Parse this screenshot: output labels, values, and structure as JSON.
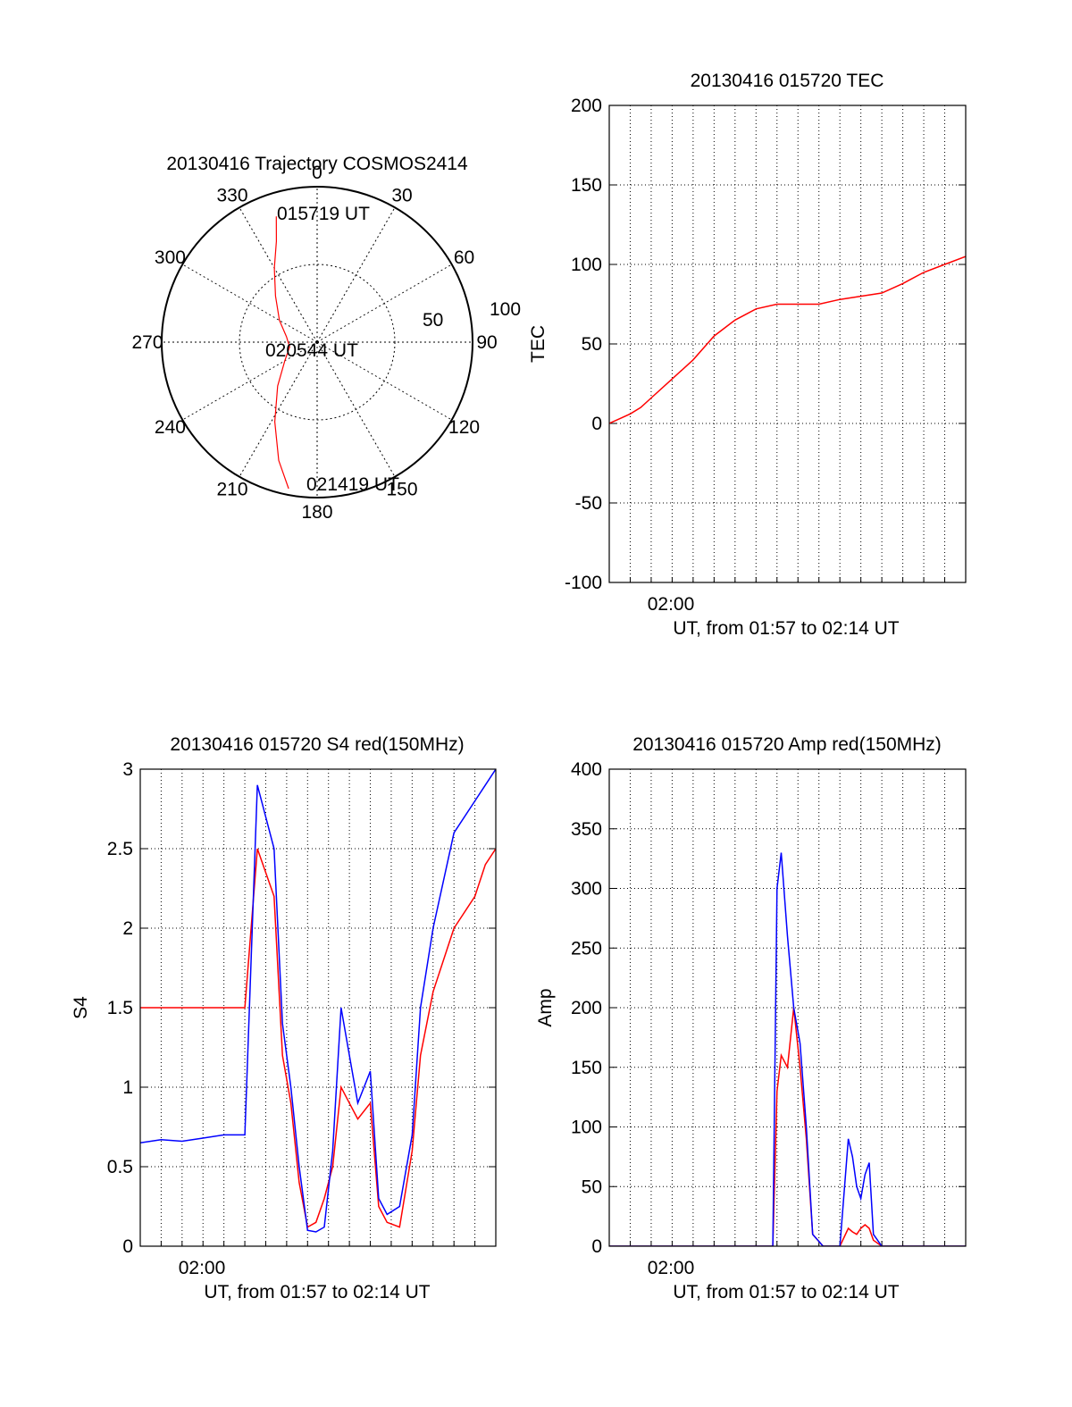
{
  "colors": {
    "red": "#ff0000",
    "blue": "#0000ff",
    "black": "#000000",
    "background": "#ffffff"
  },
  "chart_data": [
    {
      "type": "polar-trajectory",
      "title": "20130416 Trajectory COSMOS2414",
      "angle_labels": [
        "0",
        "30",
        "60",
        "90",
        "120",
        "150",
        "180",
        "210",
        "240",
        "270",
        "300",
        "330"
      ],
      "radial_labels": [
        "50",
        "100"
      ],
      "start_label": "015719 UT",
      "mid_label": "020544 UT",
      "end_label": "021419 UT",
      "trajectory": {
        "azimuth_deg": [
          342,
          338,
          330,
          318,
          300,
          280,
          260,
          240,
          222,
          208,
          198,
          191
        ],
        "zenith_deg": [
          85,
          70,
          55,
          40,
          28,
          20,
          18,
          24,
          38,
          58,
          80,
          96
        ]
      }
    },
    {
      "type": "line",
      "title": "20130416 015720 TEC",
      "ylabel": "TEC",
      "xlabel": "UT, from 01:57 to 02:14 UT",
      "ylim": [
        -100,
        200
      ],
      "yticks": [
        "-100",
        "-50",
        "0",
        "50",
        "100",
        "150",
        "200"
      ],
      "xticklabel": "02:00",
      "grid": true,
      "series": [
        {
          "color": "red",
          "x_min": [
            0,
            0.5,
            1,
            1.5,
            2,
            3,
            4,
            5,
            6,
            7,
            8,
            9,
            10,
            11,
            12,
            13,
            14,
            15,
            16,
            17
          ],
          "values": [
            0,
            3,
            6,
            10,
            16,
            28,
            40,
            55,
            65,
            72,
            75,
            75,
            75,
            78,
            80,
            82,
            88,
            95,
            100,
            105
          ]
        }
      ]
    },
    {
      "type": "line",
      "title": "20130416 015720 S4 red(150MHz)",
      "ylabel": "S4",
      "xlabel": "UT, from 01:57 to 02:14 UT",
      "ylim": [
        0,
        3
      ],
      "yticks": [
        "0",
        "0.5",
        "1",
        "1.5",
        "2",
        "2.5",
        "3"
      ],
      "xticklabel": "02:00",
      "grid": true,
      "series": [
        {
          "color": "blue",
          "x_min": [
            0,
            1,
            2,
            3,
            4,
            5,
            5.6,
            6.4,
            6.8,
            7.2,
            7.6,
            8,
            8.4,
            8.8,
            9.2,
            9.6,
            10,
            10.4,
            11,
            11.4,
            11.8,
            12.4,
            13,
            13.4,
            14,
            15,
            16,
            16.5,
            17
          ],
          "values": [
            0.65,
            0.67,
            0.66,
            0.68,
            0.7,
            0.7,
            2.9,
            2.5,
            1.4,
            1.0,
            0.5,
            0.1,
            0.09,
            0.12,
            0.6,
            1.5,
            1.2,
            0.9,
            1.1,
            0.3,
            0.2,
            0.25,
            0.7,
            1.5,
            2.0,
            2.6,
            2.8,
            2.9,
            3.0
          ]
        },
        {
          "color": "red",
          "x_min": [
            0,
            1,
            2,
            3,
            4,
            5,
            5.6,
            6.4,
            6.8,
            7.2,
            7.6,
            8,
            8.4,
            8.8,
            9.2,
            9.6,
            10,
            10.4,
            11,
            11.4,
            11.8,
            12.4,
            13,
            13.4,
            14,
            15,
            16,
            16.5,
            17
          ],
          "values": [
            1.5,
            1.5,
            1.5,
            1.5,
            1.5,
            1.5,
            2.5,
            2.2,
            1.2,
            0.9,
            0.4,
            0.12,
            0.15,
            0.3,
            0.5,
            1.0,
            0.9,
            0.8,
            0.9,
            0.25,
            0.15,
            0.12,
            0.6,
            1.2,
            1.6,
            2.0,
            2.2,
            2.4,
            2.5
          ]
        }
      ]
    },
    {
      "type": "line",
      "title": "20130416 015720 Amp red(150MHz)",
      "ylabel": "Amp",
      "xlabel": "UT, from 01:57 to 02:14 UT",
      "ylim": [
        0,
        400
      ],
      "yticks": [
        "0",
        "50",
        "100",
        "150",
        "200",
        "250",
        "300",
        "350",
        "400"
      ],
      "xticklabel": "02:00",
      "grid": true,
      "series": [
        {
          "color": "blue",
          "x_min": [
            0,
            7.8,
            8.0,
            8.2,
            8.5,
            8.8,
            9.1,
            9.4,
            9.7,
            10.2,
            11.0,
            11.4,
            11.6,
            11.8,
            12.0,
            12.2,
            12.4,
            12.6,
            13.0,
            17
          ],
          "values": [
            0,
            0,
            300,
            330,
            260,
            200,
            170,
            100,
            10,
            0,
            0,
            90,
            75,
            50,
            40,
            60,
            70,
            10,
            0,
            0
          ]
        },
        {
          "color": "red",
          "x_min": [
            0,
            7.8,
            8.0,
            8.2,
            8.5,
            8.8,
            9.1,
            9.4,
            9.7,
            10.2,
            11.0,
            11.4,
            11.6,
            11.8,
            12.0,
            12.2,
            12.4,
            12.6,
            13.0,
            17
          ],
          "values": [
            0,
            0,
            130,
            160,
            150,
            200,
            150,
            90,
            10,
            0,
            0,
            15,
            12,
            10,
            15,
            18,
            15,
            5,
            0,
            0
          ]
        }
      ]
    }
  ]
}
